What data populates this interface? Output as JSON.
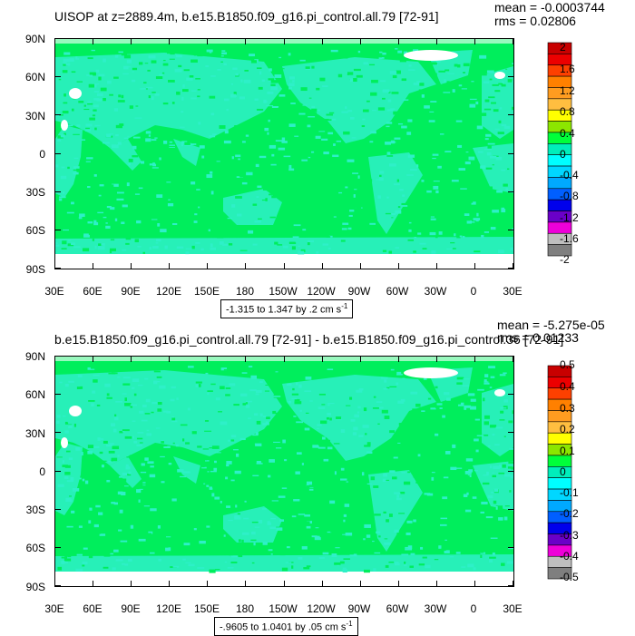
{
  "chart_data": [
    {
      "type": "heatmap",
      "title": "UISOP at z=2889.4m, b.e15.B1850.f09_g16.pi_control.all.79 [72-91]",
      "stats": {
        "mean": "mean = -0.0003744",
        "rms": "rms = 0.02806"
      },
      "x_ticks": [
        "30E",
        "60E",
        "90E",
        "120E",
        "150E",
        "180",
        "150W",
        "120W",
        "90W",
        "60W",
        "30W",
        "0",
        "30E"
      ],
      "y_ticks": [
        "90N",
        "60N",
        "30N",
        "0",
        "30S",
        "60S",
        "90S"
      ],
      "colorbar_labels": [
        "2",
        "1.6",
        "1.2",
        "0.8",
        "0.4",
        "0",
        "-0.4",
        "-0.8",
        "-1.2",
        "-1.6",
        "-2"
      ],
      "colorbar_colors": [
        "#c80000",
        "#ec0000",
        "#fd4000",
        "#ff8000",
        "#ff9c20",
        "#ffbe40",
        "#ffff00",
        "#8ce600",
        "#00ff3a",
        "#00eebb",
        "#00ffff",
        "#00d7ff",
        "#00a9ff",
        "#005fff",
        "#0000ec",
        "#6a00c8",
        "#ee00d9",
        "#bebebe",
        "#7f7f7f"
      ],
      "range_note": "-1.315 to 1.347 by .2 cm s",
      "range_unit_exp": "-1",
      "ocean_color": "#00ee5c",
      "land_color": "#2ef0c8"
    },
    {
      "type": "heatmap",
      "title": "b.e15.B1850.f09_g16.pi_control.all.79 [72-91] - b.e15.B1850.f09_g16.pi_control.36 [72-91]",
      "stats": {
        "mean": "mean = -5.275e-05",
        "rms": "rms = 0.01233"
      },
      "x_ticks": [
        "30E",
        "60E",
        "90E",
        "120E",
        "150E",
        "180",
        "150W",
        "120W",
        "90W",
        "60W",
        "30W",
        "0",
        "30E"
      ],
      "y_ticks": [
        "90N",
        "60N",
        "30N",
        "0",
        "30S",
        "60S",
        "90S"
      ],
      "colorbar_labels": [
        "0.5",
        "0.4",
        "0.3",
        "0.2",
        "0.1",
        "0",
        "-0.1",
        "-0.2",
        "-0.3",
        "-0.4",
        "-0.5"
      ],
      "colorbar_colors": [
        "#c80000",
        "#ec0000",
        "#fd4000",
        "#ff8000",
        "#ff9c20",
        "#ffbe40",
        "#ffff00",
        "#8ce600",
        "#00ff3a",
        "#00eebb",
        "#00ffff",
        "#00d7ff",
        "#00a9ff",
        "#005fff",
        "#0000ec",
        "#6a00c8",
        "#ee00d9",
        "#bebebe",
        "#7f7f7f"
      ],
      "range_note": "-.9605 to 1.0401 by .05 cm s",
      "range_unit_exp": "-1",
      "ocean_color": "#00ee5c",
      "land_color": "#2ef0c8"
    }
  ]
}
